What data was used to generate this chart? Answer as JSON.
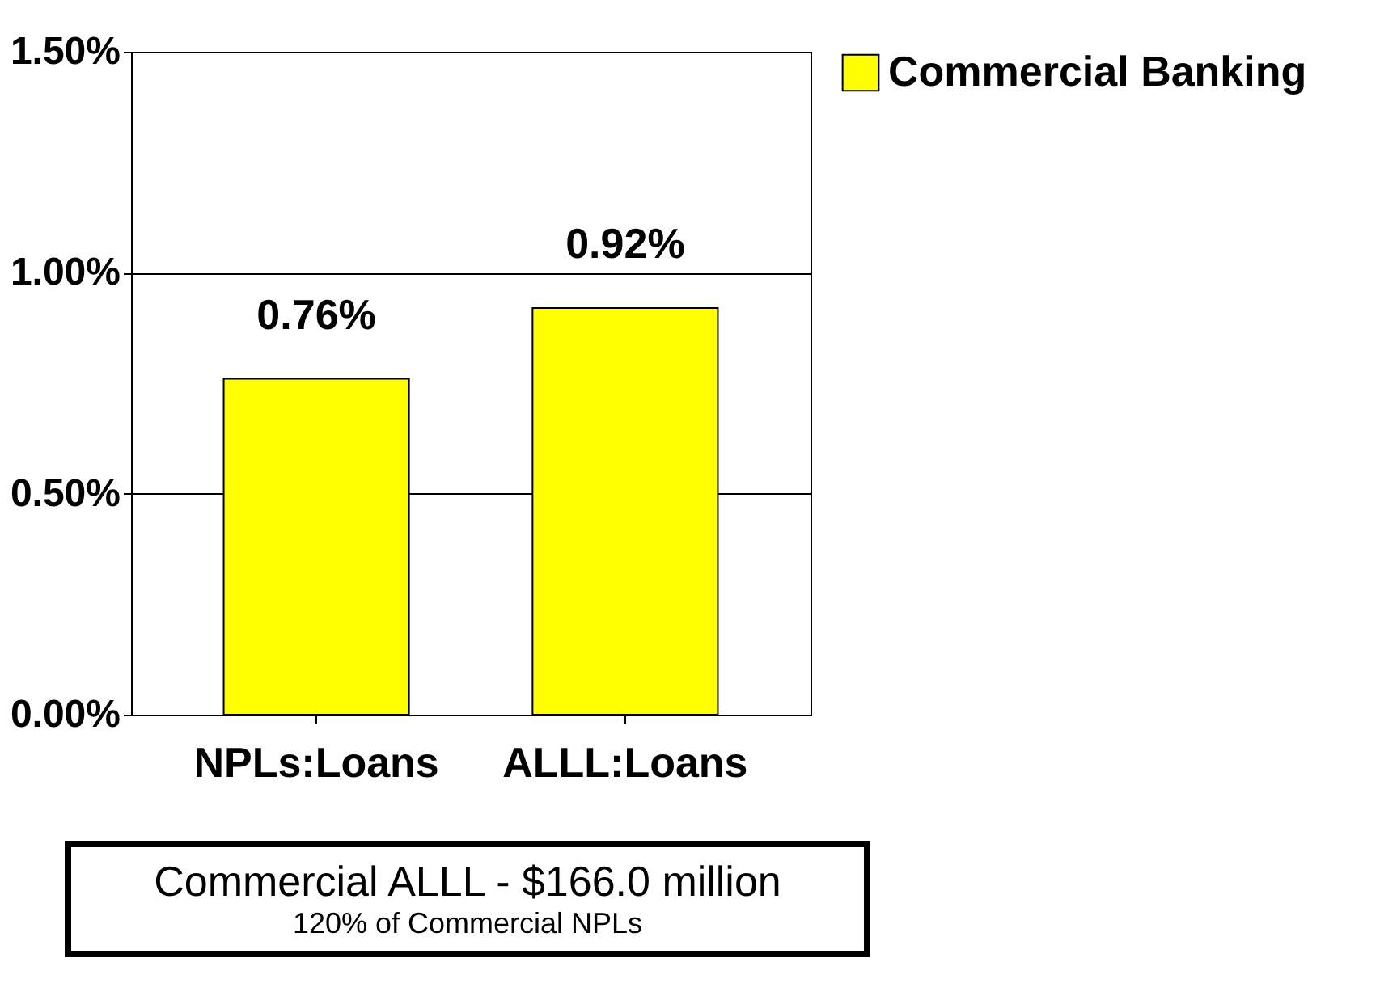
{
  "chart_data": {
    "type": "bar",
    "categories": [
      "NPLs:Loans",
      "ALLL:Loans"
    ],
    "series": [
      {
        "name": "Commercial Banking",
        "color": "#ffff00",
        "values": [
          0.76,
          0.92
        ],
        "value_labels": [
          "0.76%",
          "0.92%"
        ]
      }
    ],
    "ylim": [
      0,
      1.5
    ],
    "yticks": [
      {
        "value": 0,
        "label": "0.00%"
      },
      {
        "value": 0.5,
        "label": "0.50%"
      },
      {
        "value": 1,
        "label": "1.00%"
      },
      {
        "value": 1.5,
        "label": "1.50%"
      }
    ],
    "grid": "y",
    "legend": "right",
    "annotations": [
      "Commercial ALLL - $166.0 million",
      "120% of Commercial NPLs"
    ]
  }
}
